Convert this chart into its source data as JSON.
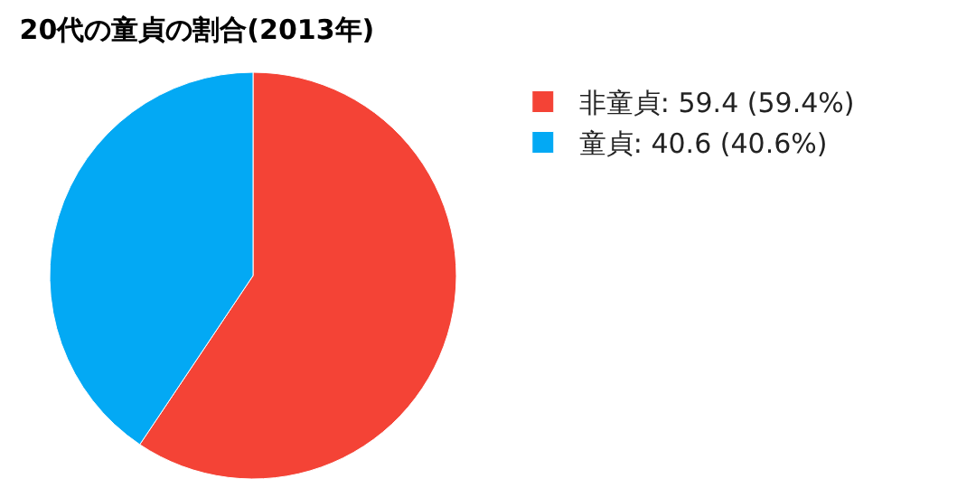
{
  "chart_data": {
    "type": "pie",
    "title": "20代の童貞の割合(2013年)",
    "categories": [
      "非童貞: 59.4 (59.4%)",
      "童貞: 40.6 (40.6%)"
    ],
    "values": [
      59.4,
      40.6
    ],
    "colors": [
      "#f44336",
      "#03a9f4"
    ],
    "legend": "top right"
  }
}
